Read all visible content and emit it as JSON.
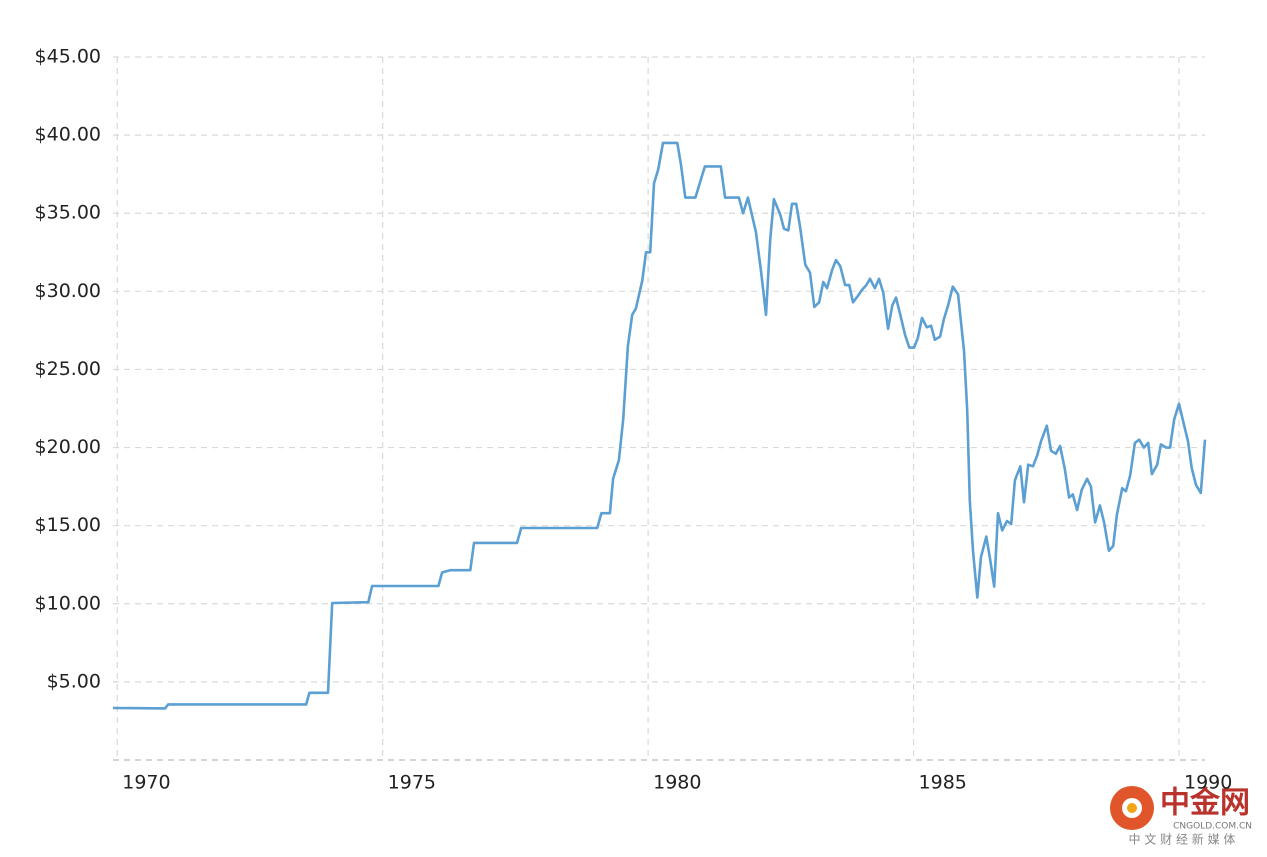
{
  "chart_data": {
    "type": "line",
    "x": [
      1969.92,
      1970.9,
      1970.96,
      1973.56,
      1973.62,
      1973.97,
      1974.05,
      1974.73,
      1974.8,
      1976.05,
      1976.12,
      1976.27,
      1976.65,
      1976.72,
      1977.53,
      1977.61,
      1979.04,
      1979.12,
      1979.28,
      1979.34,
      1979.45,
      1979.53,
      1979.62,
      1979.7,
      1979.77,
      1979.89,
      1979.96,
      1980.04,
      1980.11,
      1980.19,
      1980.28,
      1980.55,
      1980.62,
      1980.7,
      1980.89,
      1981.07,
      1981.37,
      1981.45,
      1981.71,
      1981.79,
      1981.88,
      1982.03,
      1982.13,
      1982.22,
      1982.3,
      1982.37,
      1982.49,
      1982.56,
      1982.64,
      1982.71,
      1982.79,
      1982.86,
      1982.96,
      1983.05,
      1983.13,
      1983.22,
      1983.3,
      1983.37,
      1983.47,
      1983.54,
      1983.62,
      1983.71,
      1983.79,
      1983.86,
      1983.95,
      1984.03,
      1984.11,
      1984.18,
      1984.27,
      1984.35,
      1984.43,
      1984.52,
      1984.6,
      1984.67,
      1984.75,
      1984.84,
      1984.92,
      1985.01,
      1985.08,
      1985.16,
      1985.25,
      1985.33,
      1985.4,
      1985.5,
      1985.57,
      1985.65,
      1985.74,
      1985.84,
      1985.95,
      1986.01,
      1986.06,
      1986.12,
      1986.2,
      1986.27,
      1986.37,
      1986.44,
      1986.52,
      1986.59,
      1986.67,
      1986.76,
      1986.84,
      1986.91,
      1987.01,
      1987.08,
      1987.16,
      1987.25,
      1987.33,
      1987.4,
      1987.51,
      1987.59,
      1987.68,
      1987.76,
      1987.85,
      1987.93,
      1988.0,
      1988.08,
      1988.17,
      1988.27,
      1988.34,
      1988.42,
      1988.51,
      1988.59,
      1988.68,
      1988.76,
      1988.83,
      1988.93,
      1989.0,
      1989.08,
      1989.17,
      1989.25,
      1989.34,
      1989.42,
      1989.49,
      1989.59,
      1989.66,
      1989.76,
      1989.83,
      1989.91,
      1990.0,
      1990.07,
      1990.17,
      1990.24,
      1990.32,
      1990.41,
      1990.49
    ],
    "series": [
      {
        "color": "#5b9fd3",
        "values": [
          3.33,
          3.3,
          3.56,
          3.56,
          4.3,
          4.3,
          10.05,
          10.1,
          11.14,
          11.14,
          12.0,
          12.15,
          12.15,
          13.9,
          13.9,
          14.85,
          14.85,
          15.8,
          15.8,
          18.0,
          19.2,
          21.8,
          26.5,
          28.5,
          28.9,
          30.7,
          32.5,
          32.5,
          36.9,
          37.8,
          39.5,
          39.5,
          38.1,
          36.0,
          36.0,
          38.0,
          38.0,
          36.0,
          36.0,
          35.0,
          36.0,
          33.8,
          31.2,
          28.5,
          33.3,
          35.9,
          34.9,
          34.0,
          33.9,
          35.6,
          35.6,
          34.2,
          31.7,
          31.2,
          29.0,
          29.3,
          30.6,
          30.2,
          31.4,
          32.0,
          31.6,
          30.4,
          30.4,
          29.3,
          29.7,
          30.1,
          30.4,
          30.8,
          30.2,
          30.8,
          29.9,
          27.6,
          29.1,
          29.6,
          28.5,
          27.2,
          26.4,
          26.4,
          27.0,
          28.3,
          27.7,
          27.8,
          26.9,
          27.1,
          28.2,
          29.1,
          30.3,
          29.8,
          26.2,
          22.4,
          16.6,
          13.4,
          10.4,
          13.0,
          14.3,
          12.9,
          11.1,
          15.8,
          14.7,
          15.3,
          15.1,
          17.9,
          18.8,
          16.5,
          18.9,
          18.8,
          19.5,
          20.4,
          21.4,
          19.8,
          19.6,
          20.1,
          18.6,
          16.8,
          17.0,
          16.0,
          17.3,
          18.0,
          17.5,
          15.2,
          16.3,
          15.2,
          13.4,
          13.7,
          15.7,
          17.4,
          17.2,
          18.2,
          20.3,
          20.5,
          20.0,
          20.3,
          18.3,
          18.9,
          20.2,
          20.0,
          20.0,
          21.8,
          22.8,
          21.8,
          20.4,
          18.7,
          17.6,
          17.1,
          20.5
        ]
      }
    ],
    "xlim": [
      1969.92,
      1990.49
    ],
    "xticks": [
      1970,
      1975,
      1980,
      1985,
      1990
    ],
    "ylim": [
      0,
      45
    ],
    "yticks": [
      {
        "value": 5,
        "label": "$5.00"
      },
      {
        "value": 10,
        "label": "$10.00"
      },
      {
        "value": 15,
        "label": "$15.00"
      },
      {
        "value": 20,
        "label": "$20.00"
      },
      {
        "value": 25,
        "label": "$25.00"
      },
      {
        "value": 30,
        "label": "$30.00"
      },
      {
        "value": 35,
        "label": "$35.00"
      },
      {
        "value": 40,
        "label": "$40.00"
      },
      {
        "value": 45,
        "label": "$45.00"
      }
    ],
    "grid": true
  },
  "watermark": {
    "name": "中金网",
    "site": "CNGOLD.COM.CN",
    "tagline": "中 文 财 经 新 媒 体"
  }
}
